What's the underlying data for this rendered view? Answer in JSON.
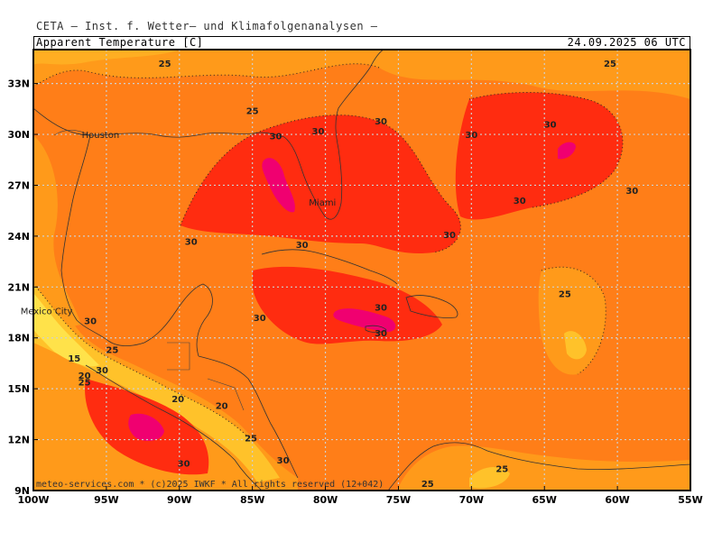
{
  "header": {
    "source": "CETA — Inst. f. Wetter— und Klimafolgenanalysen —",
    "title": "Apparent Temperature [C]",
    "valid_time": "24.09.2025 06 UTC"
  },
  "footer": {
    "credit": "meteo-services.com * (c)2025 IWKF * All rights reserved (12+042)"
  },
  "axes": {
    "lat_labels": [
      "33N",
      "30N",
      "27N",
      "24N",
      "21N",
      "18N",
      "15N",
      "12N",
      "9N"
    ],
    "lat_values": [
      33,
      30,
      27,
      24,
      21,
      18,
      15,
      12,
      9
    ],
    "lon_labels": [
      "100W",
      "95W",
      "90W",
      "85W",
      "80W",
      "75W",
      "70W",
      "65W",
      "60W",
      "55W"
    ],
    "lon_values": [
      -100,
      -95,
      -90,
      -85,
      -80,
      -75,
      -70,
      -65,
      -60,
      -55
    ],
    "lon_range": [
      -100,
      -55
    ],
    "lat_range": [
      9,
      35
    ]
  },
  "cities": [
    {
      "name": "Houston",
      "lon": -95.4,
      "lat": 29.8
    },
    {
      "name": "Miami",
      "lon": -80.2,
      "lat": 25.8
    },
    {
      "name": "Mexico City",
      "lon": -99.1,
      "lat": 19.4
    }
  ],
  "isotherm_labels": [
    {
      "text": "25",
      "lon": -91.0,
      "lat": 34.0
    },
    {
      "text": "25",
      "lon": -85.0,
      "lat": 31.2
    },
    {
      "text": "30",
      "lon": -83.4,
      "lat": 29.7
    },
    {
      "text": "30",
      "lon": -80.5,
      "lat": 30.0
    },
    {
      "text": "30",
      "lon": -76.2,
      "lat": 30.6
    },
    {
      "text": "30",
      "lon": -70.0,
      "lat": 29.8
    },
    {
      "text": "30",
      "lon": -64.6,
      "lat": 30.4
    },
    {
      "text": "25",
      "lon": -60.5,
      "lat": 34.0
    },
    {
      "text": "30",
      "lon": -59.0,
      "lat": 26.5
    },
    {
      "text": "30",
      "lon": -66.7,
      "lat": 25.9
    },
    {
      "text": "30",
      "lon": -71.5,
      "lat": 23.9
    },
    {
      "text": "30",
      "lon": -81.6,
      "lat": 23.3
    },
    {
      "text": "30",
      "lon": -89.2,
      "lat": 23.5
    },
    {
      "text": "25",
      "lon": -63.6,
      "lat": 20.4
    },
    {
      "text": "30",
      "lon": -76.2,
      "lat": 19.6
    },
    {
      "text": "30",
      "lon": -76.2,
      "lat": 18.1
    },
    {
      "text": "30",
      "lon": -84.5,
      "lat": 19.0
    },
    {
      "text": "30",
      "lon": -96.1,
      "lat": 18.8
    },
    {
      "text": "15",
      "lon": -97.2,
      "lat": 16.6
    },
    {
      "text": "25",
      "lon": -94.6,
      "lat": 17.1
    },
    {
      "text": "20",
      "lon": -96.5,
      "lat": 15.6
    },
    {
      "text": "25",
      "lon": -96.5,
      "lat": 15.2
    },
    {
      "text": "30",
      "lon": -95.3,
      "lat": 15.9
    },
    {
      "text": "20",
      "lon": -90.1,
      "lat": 14.2
    },
    {
      "text": "20",
      "lon": -87.1,
      "lat": 13.8
    },
    {
      "text": "25",
      "lon": -85.1,
      "lat": 11.9
    },
    {
      "text": "30",
      "lon": -89.7,
      "lat": 10.4
    },
    {
      "text": "30",
      "lon": -82.9,
      "lat": 10.6
    },
    {
      "text": "25",
      "lon": -73.0,
      "lat": 9.2
    },
    {
      "text": "25",
      "lon": -67.9,
      "lat": 10.1
    }
  ],
  "colors": {
    "t15": "#ffe24a",
    "t20": "#ffc22a",
    "t25": "#ff9a1a",
    "t27": "#ff7e18",
    "t28": "#ff5e10",
    "t30": "#ff2c10",
    "t33": "#f00070"
  }
}
